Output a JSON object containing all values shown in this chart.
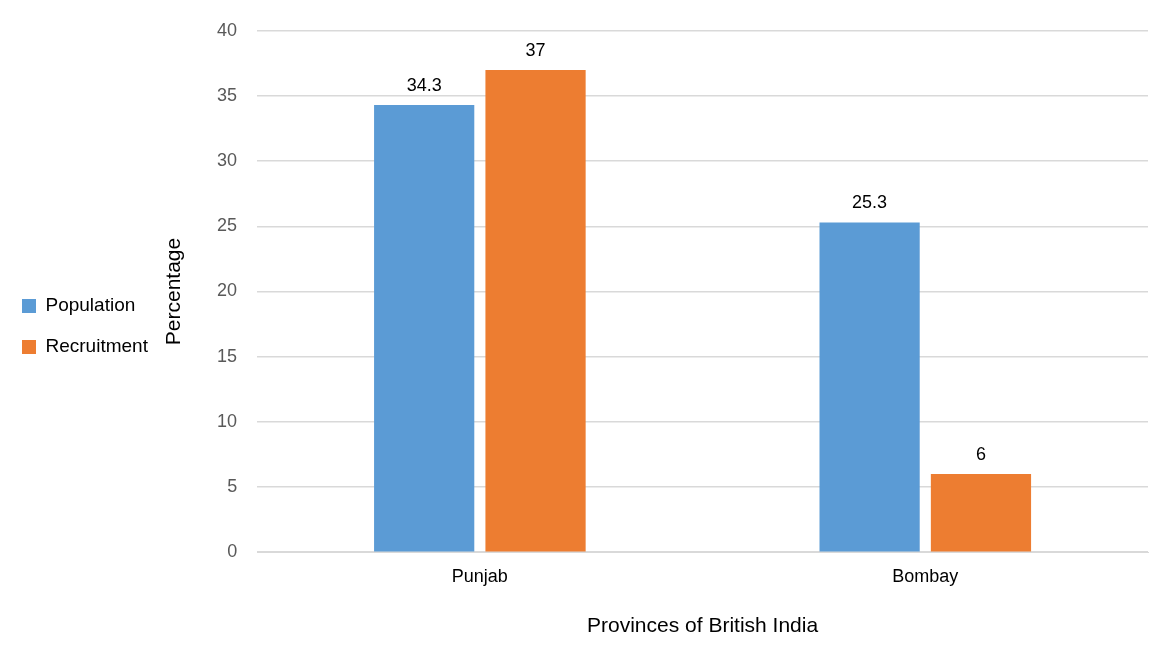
{
  "chart_data": {
    "type": "bar",
    "xlabel": "Provinces of British India",
    "ylabel": "Percentage",
    "categories": [
      "Punjab",
      "Bombay"
    ],
    "series": [
      {
        "name": "Population",
        "color": "#5b9bd5",
        "values": [
          34.3,
          25.3
        ]
      },
      {
        "name": "Recruitment",
        "color": "#ed7d31",
        "values": [
          37,
          6
        ]
      }
    ],
    "ylim": [
      0,
      40
    ],
    "yticks": [
      0,
      5,
      10,
      15,
      20,
      25,
      30,
      35,
      40
    ],
    "grid": "y",
    "legend": "left",
    "data_labels": true
  }
}
